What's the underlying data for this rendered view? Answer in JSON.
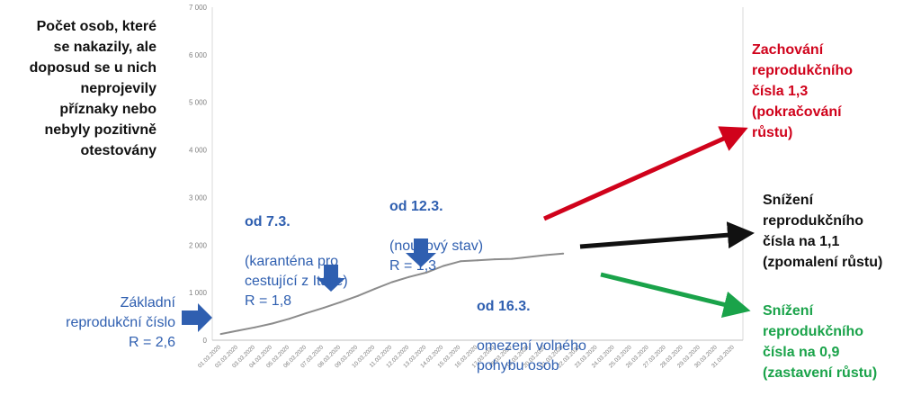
{
  "side_title": "Počet osob, které\nse nakazily, ale\ndoposud se u nich\nneprojevily\npříznaky nebo\nnebyly pozitivně\notestovány",
  "annotations": {
    "baseline": {
      "text": "Základní\nreprodukční číslo\nR = 2,6"
    },
    "a73": {
      "head": "od 7.3.",
      "body": "(karanténa pro\ncestující z Itálie)\nR = 1,8"
    },
    "a123": {
      "head": "od 12.3.",
      "body": "(nouzový stav)\nR = 1,3"
    },
    "a163": {
      "head": "od 16.3.",
      "body": "omezení volného\npohybu osob"
    }
  },
  "scenarios": [
    {
      "text": "Zachování\nreprodukčního\nčísla 1,3\n(pokračování\nrůstu)",
      "color": "#d0021b"
    },
    {
      "text": "Snížení\nreprodukčního\nčísla na 1,1\n(zpomalení růstu)",
      "color": "#111111"
    },
    {
      "text": "Snížení\nreprodukčního\nčísla na 0,9\n(zastavení růstu)",
      "color": "#1aa34a"
    }
  ],
  "colors": {
    "line": "#8c8c8c",
    "grid": "#e6e6e6",
    "arrow": "#2f5fb0",
    "red": "#d0021b",
    "black": "#111111",
    "green": "#1aa34a"
  },
  "chart_data": {
    "type": "line",
    "x": [
      "01.03.2020",
      "02.03.2020",
      "03.03.2020",
      "04.03.2020",
      "05.03.2020",
      "06.03.2020",
      "07.03.2020",
      "08.03.2020",
      "09.03.2020",
      "10.03.2020",
      "11.03.2020",
      "12.03.2020",
      "13.03.2020",
      "14.03.2020",
      "15.03.2020",
      "16.03.2020",
      "17.03.2020",
      "18.03.2020",
      "19.03.2020",
      "20.03.2020",
      "21.03.2020",
      "22.03.2020",
      "23.03.2020",
      "24.03.2020",
      "25.03.2020",
      "26.03.2020",
      "27.03.2020",
      "28.03.2020",
      "29.03.2020",
      "30.03.2020",
      "31.03.2020"
    ],
    "values": [
      130,
      200,
      270,
      350,
      450,
      570,
      680,
      800,
      930,
      1080,
      1220,
      1330,
      1420,
      1560,
      1660,
      1680,
      1700,
      1710,
      1750,
      1790,
      1820,
      null,
      null,
      null,
      null,
      null,
      null,
      null,
      null,
      null,
      null
    ],
    "y_ticks": [
      "0",
      "1 000",
      "2 000",
      "3 000",
      "4 000",
      "5 000",
      "6 000",
      "7 000"
    ],
    "ylim": [
      0,
      7000
    ],
    "grid": false
  }
}
